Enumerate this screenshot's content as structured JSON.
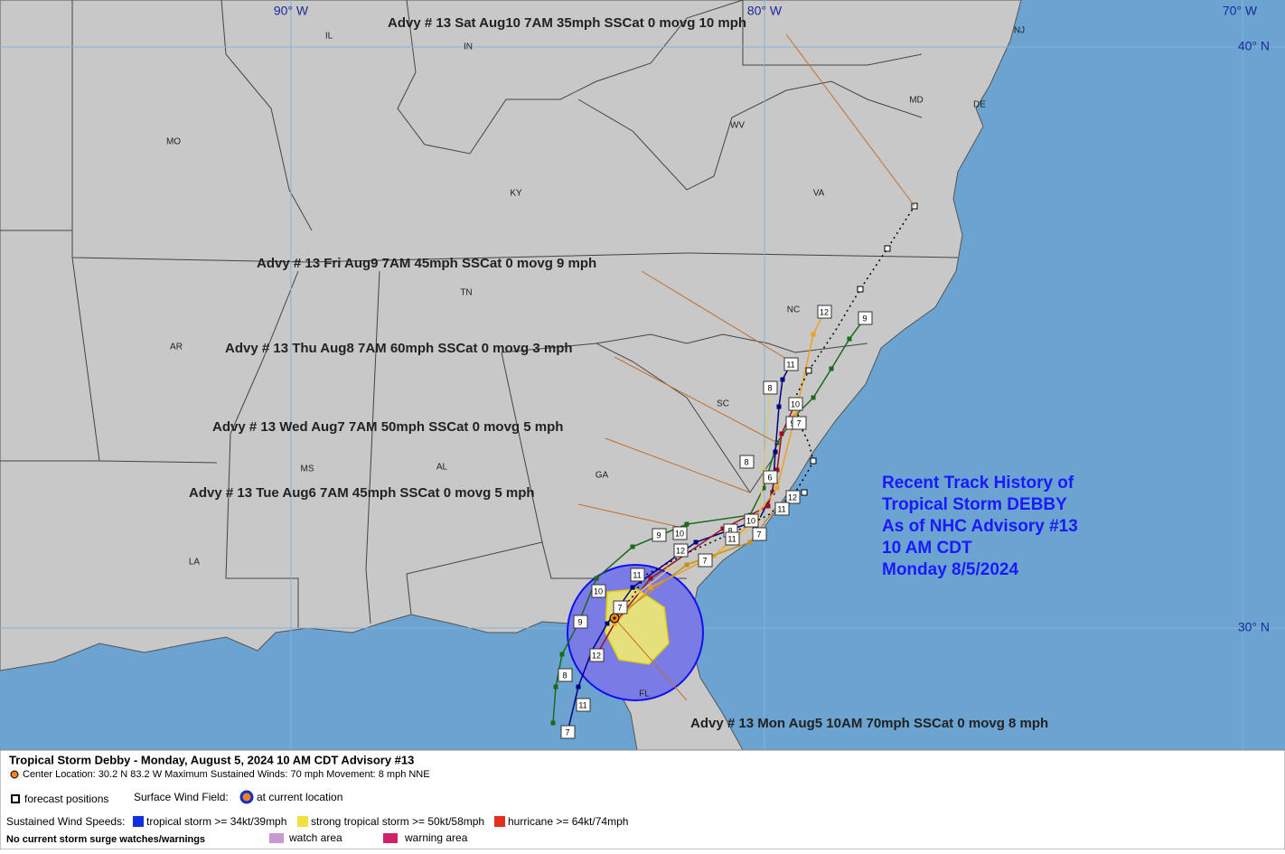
{
  "map": {
    "lon_labels": [
      "90° W",
      "80° W",
      "70° W"
    ],
    "lat_labels": [
      "40° N",
      "30° N"
    ],
    "state_labels": [
      "IL",
      "IN",
      "MO",
      "KY",
      "WV",
      "VA",
      "MD",
      "DE",
      "NJ",
      "TN",
      "NC",
      "AR",
      "SC",
      "MS",
      "AL",
      "GA",
      "LA",
      "FL"
    ],
    "advisories": [
      "Advy # 13 Sat Aug10 7AM  35mph SSCat 0 movg 10 mph",
      "Advy # 13 Fri Aug9 7AM  45mph SSCat 0 movg 9 mph",
      "Advy # 13 Thu Aug8 7AM  60mph SSCat 0 movg 3 mph",
      "Advy # 13 Wed Aug7 7AM  50mph SSCat 0 movg 5 mph",
      "Advy # 13 Tue Aug6 7AM  45mph SSCat 0 movg 5 mph",
      "Advy # 13 Mon Aug5 10AM  70mph SSCat 0 movg 8 mph"
    ],
    "history_box": [
      "Recent Track History of",
      "Tropical Storm DEBBY",
      "As of NHC Advisory #13",
      "10 AM CDT",
      "Monday 8/5/2024"
    ],
    "track_labels": [
      "12",
      "9",
      "11",
      "8",
      "10",
      "9",
      "7",
      "8",
      "6",
      "12",
      "11",
      "10",
      "8",
      "7",
      "11",
      "10",
      "9",
      "12",
      "7",
      "11",
      "10",
      "7",
      "9",
      "12",
      "8",
      "11",
      "7"
    ]
  },
  "legend": {
    "title": "Tropical Storm Debby  -  Monday, August 5, 2024  10 AM CDT   Advisory #13",
    "details": "Center Location: 30.2 N  83.2 W  Maximum Sustained Winds: 70 mph  Movement: 8 mph NNE",
    "forecast": "forecast positions",
    "wind_field": "Surface Wind Field:",
    "current": "at current location",
    "speeds": "Sustained Wind Speeds:",
    "ts": "tropical storm >= 34kt/39mph",
    "sts": "strong tropical storm >= 50kt/58mph",
    "hu": "hurricane >= 64kt/74mph",
    "surge": "No current storm surge watches/warnings",
    "watch": "watch area",
    "warning": "warning area"
  }
}
